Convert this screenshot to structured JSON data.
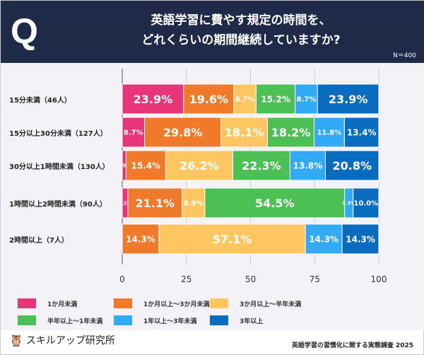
{
  "header": {
    "q": "Q",
    "title_line1": "英語学習に費やす規定の時間を、",
    "title_line2": "どれくらいの期間継続していますか?",
    "n": "N＝400"
  },
  "colors": [
    "#e8357a",
    "#f07a2a",
    "#fdc661",
    "#4cbf55",
    "#33aaf5",
    "#0a6cbf"
  ],
  "chart_data": {
    "type": "bar",
    "orientation": "horizontal",
    "stacked": true,
    "categories": [
      "15分未満（46人）",
      "15分以上30分未満（127人）",
      "30分以上1時間未満（130人）",
      "1時間以上2時間未満（90人）",
      "2時間以上（7人）"
    ],
    "series": [
      {
        "name": "1か月未満",
        "values": [
          23.9,
          8.7,
          1.5,
          2.2,
          0
        ]
      },
      {
        "name": "1か月以上～3か月未満",
        "values": [
          19.6,
          29.8,
          15.4,
          21.1,
          14.3
        ]
      },
      {
        "name": "3か月以上～半年未満",
        "values": [
          8.7,
          18.1,
          26.2,
          8.9,
          57.1
        ]
      },
      {
        "name": "半年以上～1年未満",
        "values": [
          15.2,
          18.2,
          22.3,
          54.5,
          0
        ]
      },
      {
        "name": "1年以上～3年未満",
        "values": [
          8.7,
          11.8,
          13.8,
          3.3,
          14.3
        ]
      },
      {
        "name": "3年以上",
        "values": [
          23.9,
          13.4,
          20.8,
          10.0,
          14.3
        ]
      }
    ],
    "xlim": [
      0,
      100
    ],
    "xticks": [
      "0",
      "25",
      "50",
      "75",
      "100"
    ],
    "grid": true,
    "legend": "bottom"
  },
  "footer": {
    "logo": "スキルアップ研究所",
    "source": "英語学習の習慣化に関する実態調査 2025"
  }
}
